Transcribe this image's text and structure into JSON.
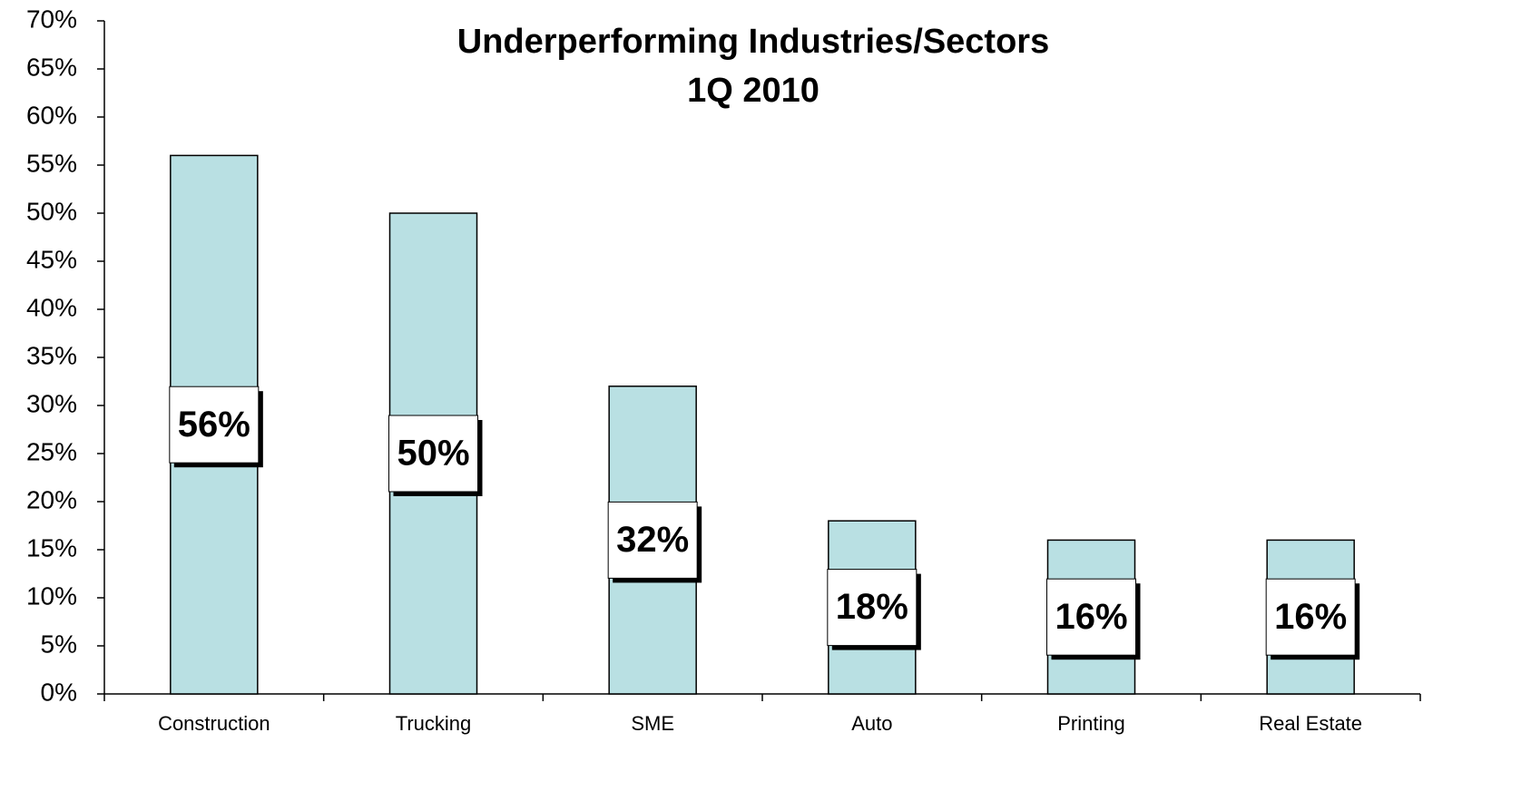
{
  "chart_data": {
    "type": "bar",
    "title": "Underperforming Industries/Sectors",
    "subtitle": "1Q 2010",
    "categories": [
      "Construction",
      "Trucking",
      "SME",
      "Auto",
      "Printing",
      "Real Estate"
    ],
    "values": [
      56,
      50,
      32,
      18,
      16,
      16
    ],
    "value_labels": [
      "56%",
      "50%",
      "32%",
      "18%",
      "16%",
      "16%"
    ],
    "color": "#b9e0e3",
    "ylim": [
      0,
      70
    ],
    "yticks": [
      {
        "value": 0,
        "label": "0%"
      },
      {
        "value": 5,
        "label": "5%"
      },
      {
        "value": 10,
        "label": "10%"
      },
      {
        "value": 15,
        "label": "15%"
      },
      {
        "value": 20,
        "label": "20%"
      },
      {
        "value": 25,
        "label": "25%"
      },
      {
        "value": 30,
        "label": "30%"
      },
      {
        "value": 35,
        "label": "35%"
      },
      {
        "value": 40,
        "label": "40%"
      },
      {
        "value": 45,
        "label": "45%"
      },
      {
        "value": 50,
        "label": "50%"
      },
      {
        "value": 55,
        "label": "55%"
      },
      {
        "value": 60,
        "label": "60%"
      },
      {
        "value": 65,
        "label": "65%"
      },
      {
        "value": 70,
        "label": "70%"
      }
    ],
    "grid": false
  }
}
